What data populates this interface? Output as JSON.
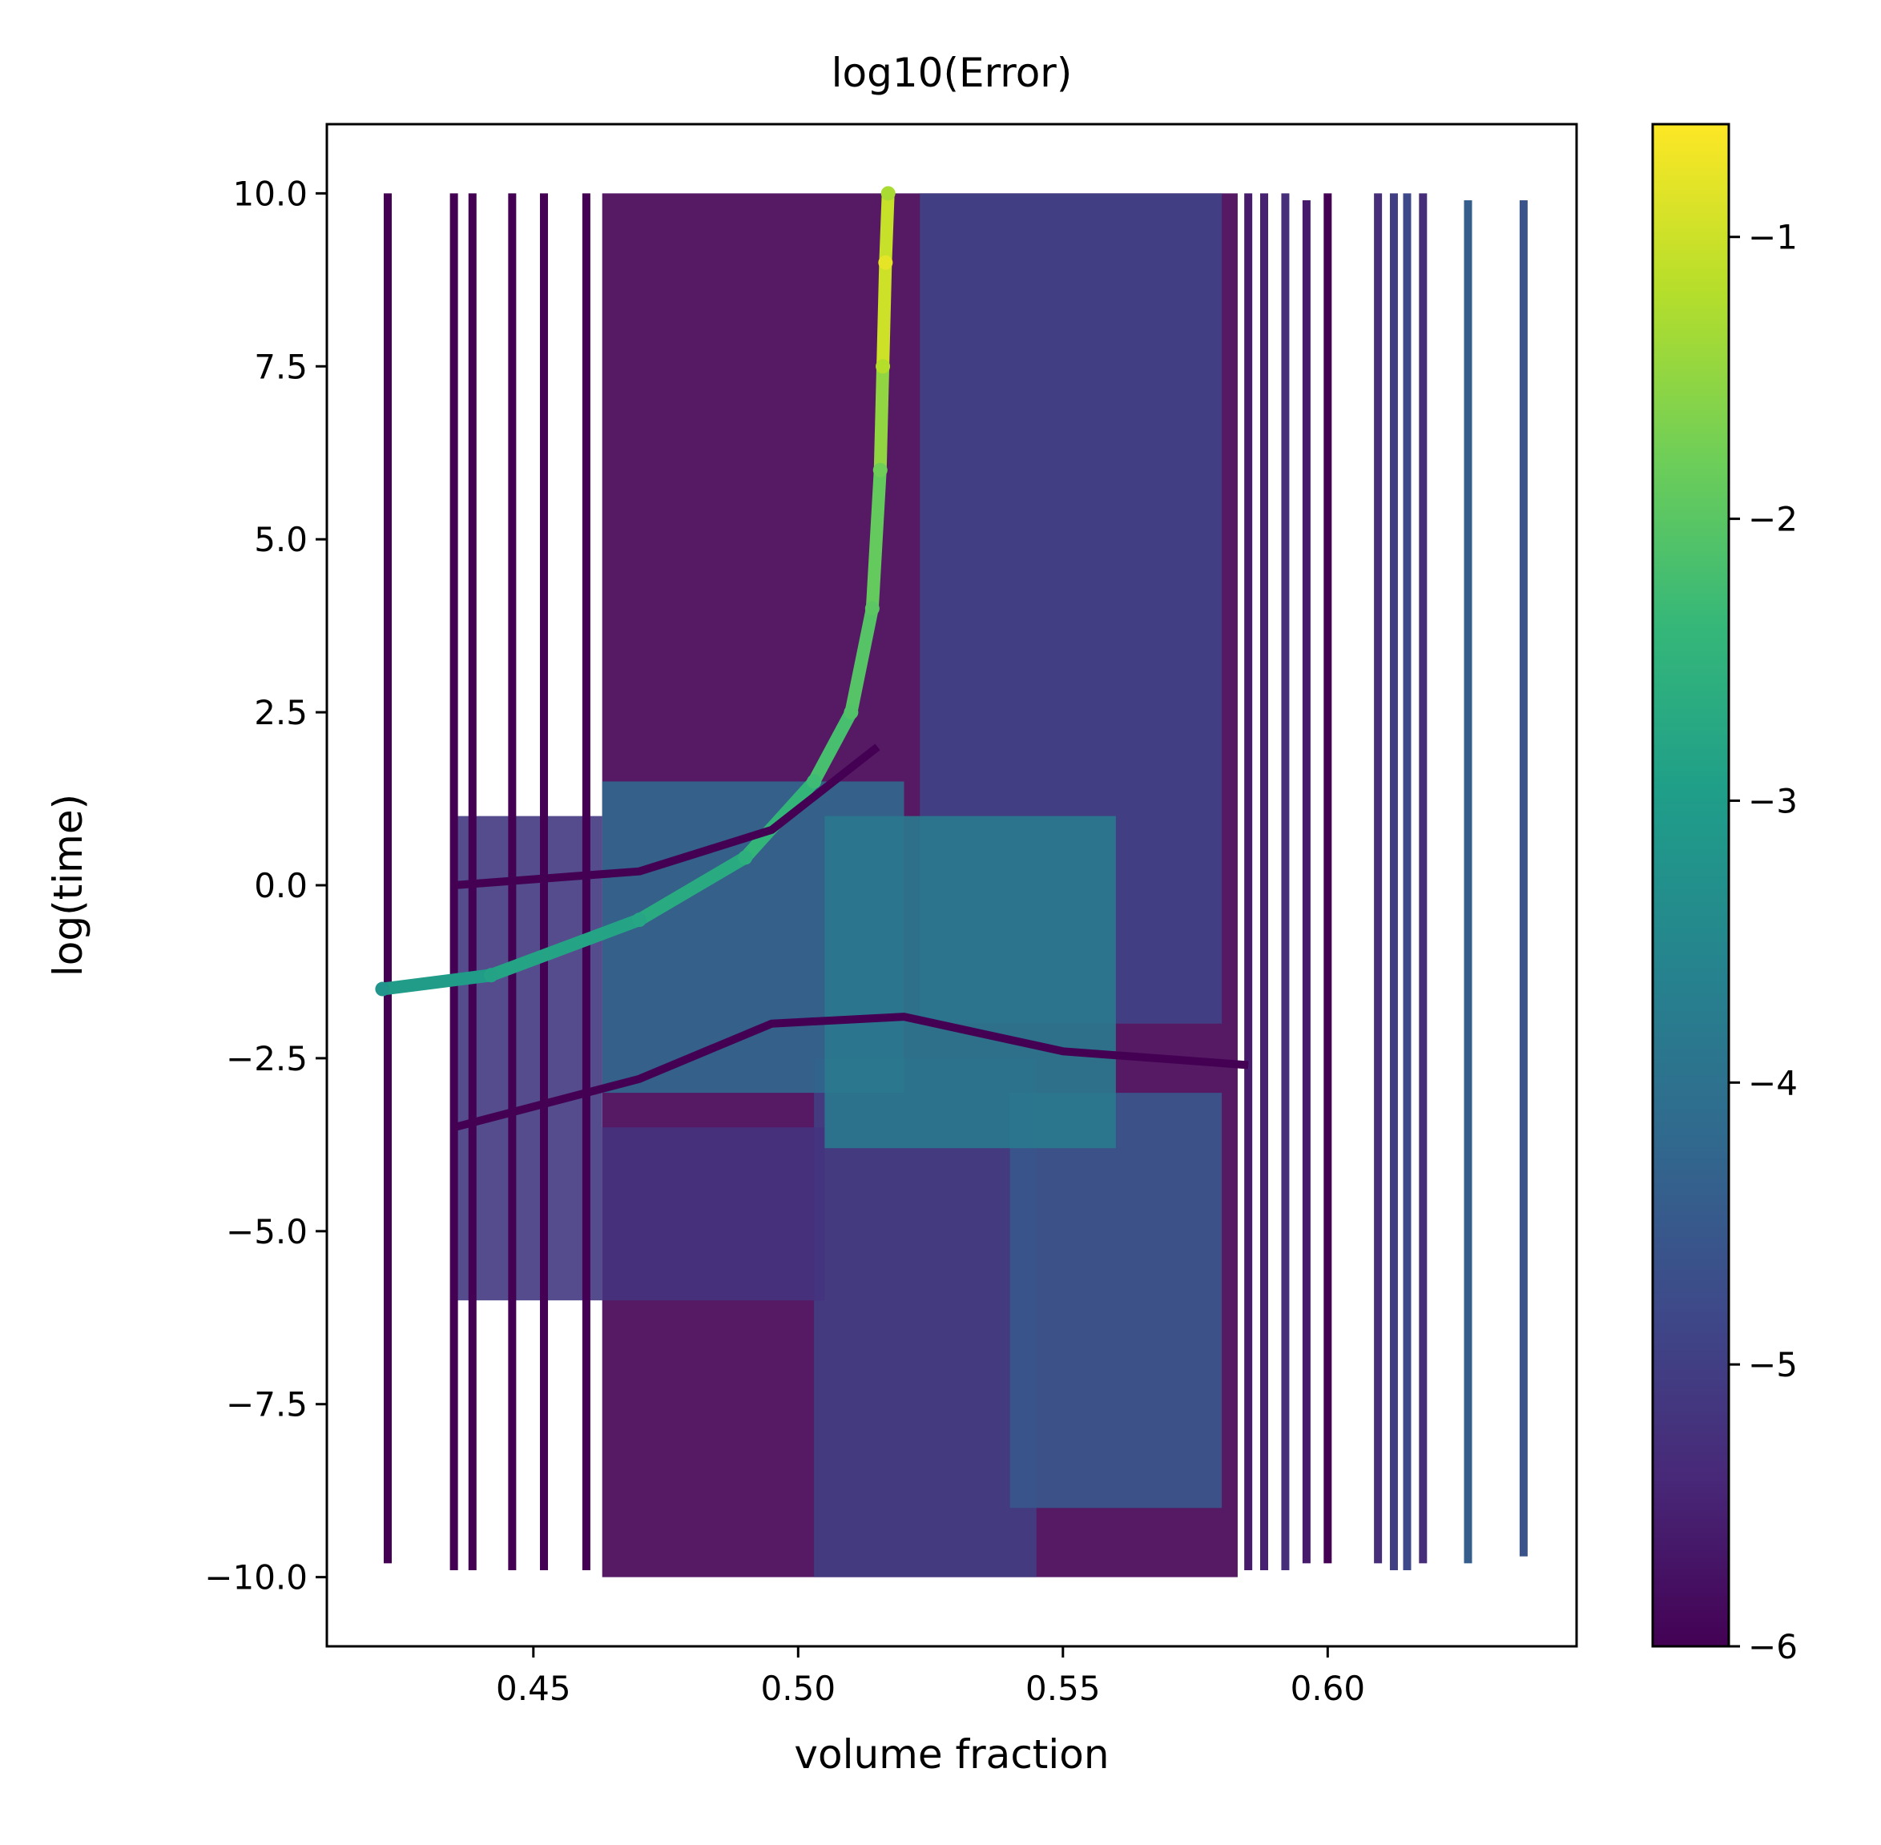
{
  "chart_data": {
    "type": "scatter",
    "title": "log10(Error)",
    "xlabel": "volume fraction",
    "ylabel": "log(time)",
    "xlim": [
      0.411,
      0.647
    ],
    "ylim": [
      -11.0,
      11.0
    ],
    "xticks": [
      0.45,
      0.5,
      0.55,
      0.6
    ],
    "xtick_labels": [
      "0.45",
      "0.50",
      "0.55",
      "0.60"
    ],
    "yticks": [
      10.0,
      7.5,
      5.0,
      2.5,
      0.0,
      -2.5,
      -5.0,
      -7.5,
      -10.0
    ],
    "ytick_labels": [
      "10.0",
      "7.5",
      "5.0",
      "2.5",
      "0.0",
      "−2.5",
      "−5.0",
      "−7.5",
      "−10.0"
    ],
    "colorbar": {
      "label": "",
      "colormap": "viridis",
      "range": [
        -6.0,
        -0.6
      ],
      "ticks": [
        -1,
        -2,
        -3,
        -4,
        -5,
        -6
      ],
      "tick_labels": [
        "−1",
        "−2",
        "−3",
        "−4",
        "−5",
        "−6"
      ]
    },
    "colormap_stops": [
      "#440154",
      "#482878",
      "#3e4989",
      "#31688e",
      "#26828e",
      "#1f9e89",
      "#35b779",
      "#6ece58",
      "#b5de2b",
      "#fde725"
    ],
    "grid": false,
    "columns": [
      {
        "x": 0.4225,
        "y": [
          -9.8,
          10.0
        ],
        "c": -6.0
      },
      {
        "x": 0.435,
        "y": [
          -9.9,
          10.0
        ],
        "c": -6.0
      },
      {
        "x": 0.4385,
        "y": [
          -9.9,
          10.0
        ],
        "c": -6.0
      },
      {
        "x": 0.446,
        "y": [
          -9.9,
          10.0
        ],
        "c": -6.0
      },
      {
        "x": 0.452,
        "y": [
          -9.9,
          10.0
        ],
        "c": -6.0
      },
      {
        "x": 0.46,
        "y": [
          -9.9,
          10.0
        ],
        "c": -6.0
      },
      {
        "x": 0.585,
        "y": [
          -9.9,
          10.0
        ],
        "c": -5.6
      },
      {
        "x": 0.588,
        "y": [
          -9.9,
          10.0
        ],
        "c": -5.5
      },
      {
        "x": 0.592,
        "y": [
          -9.9,
          10.0
        ],
        "c": -5.3
      },
      {
        "x": 0.596,
        "y": [
          -9.8,
          9.9
        ],
        "c": -5.6
      },
      {
        "x": 0.6,
        "y": [
          -9.8,
          10.0
        ],
        "c": -6.0
      },
      {
        "x": 0.6095,
        "y": [
          -9.8,
          10.0
        ],
        "c": -5.3
      },
      {
        "x": 0.6125,
        "y": [
          -9.9,
          10.0
        ],
        "c": -5.0
      },
      {
        "x": 0.615,
        "y": [
          -9.9,
          10.0
        ],
        "c": -4.8
      },
      {
        "x": 0.618,
        "y": [
          -9.8,
          10.0
        ],
        "c": -5.3
      },
      {
        "x": 0.6265,
        "y": [
          -9.8,
          9.9
        ],
        "c": -4.4
      },
      {
        "x": 0.637,
        "y": [
          -9.7,
          9.9
        ],
        "c": -4.6
      }
    ],
    "regions": [
      {
        "x": [
          0.463,
          0.583
        ],
        "y": [
          -10.0,
          10.0
        ],
        "c": -6.0
      },
      {
        "x": [
          0.523,
          0.58
        ],
        "y": [
          -2.0,
          10.0
        ],
        "c": -4.9
      },
      {
        "x": [
          0.503,
          0.545
        ],
        "y": [
          -10.0,
          -2.5
        ],
        "c": -5.0
      },
      {
        "x": [
          0.54,
          0.58
        ],
        "y": [
          -9.0,
          -3.0
        ],
        "c": -4.5
      },
      {
        "x": [
          0.463,
          0.52
        ],
        "y": [
          -3.0,
          1.5
        ],
        "c": -4.2
      },
      {
        "x": [
          0.463,
          0.505
        ],
        "y": [
          -6.0,
          -3.5
        ],
        "c": -5.2
      },
      {
        "x": [
          0.435,
          0.463
        ],
        "y": [
          -6.0,
          1.0
        ],
        "c": -5.1
      },
      {
        "x": [
          0.505,
          0.56
        ],
        "y": [
          -3.8,
          1.0
        ],
        "c": -3.8
      }
    ],
    "ridge": [
      {
        "x": 0.4215,
        "y": -1.5,
        "c": -3.2
      },
      {
        "x": 0.442,
        "y": -1.3,
        "c": -2.9
      },
      {
        "x": 0.47,
        "y": -0.5,
        "c": -2.8
      },
      {
        "x": 0.49,
        "y": 0.4,
        "c": -2.6
      },
      {
        "x": 0.503,
        "y": 1.5,
        "c": -2.3
      },
      {
        "x": 0.51,
        "y": 2.5,
        "c": -2.1
      },
      {
        "x": 0.514,
        "y": 4.0,
        "c": -2.0
      },
      {
        "x": 0.5155,
        "y": 6.0,
        "c": -1.8
      },
      {
        "x": 0.516,
        "y": 7.5,
        "c": -1.2
      },
      {
        "x": 0.5165,
        "y": 9.0,
        "c": -0.8
      },
      {
        "x": 0.517,
        "y": 10.0,
        "c": -1.3
      }
    ],
    "dark_bands": [
      [
        {
          "x": 0.435,
          "y": 0.0
        },
        {
          "x": 0.47,
          "y": 0.2
        },
        {
          "x": 0.495,
          "y": 0.8
        },
        {
          "x": 0.515,
          "y": 2.0
        }
      ],
      [
        {
          "x": 0.435,
          "y": -3.5
        },
        {
          "x": 0.47,
          "y": -2.8
        },
        {
          "x": 0.495,
          "y": -2.0
        },
        {
          "x": 0.52,
          "y": -1.9
        },
        {
          "x": 0.55,
          "y": -2.4
        },
        {
          "x": 0.585,
          "y": -2.6
        }
      ]
    ]
  }
}
